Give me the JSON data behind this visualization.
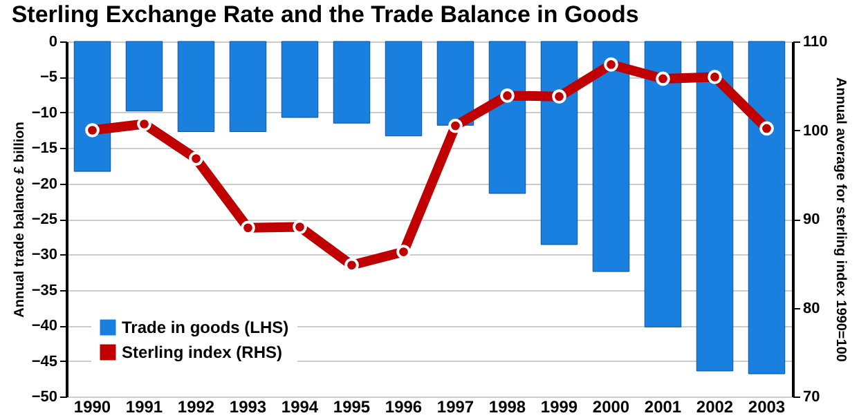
{
  "chart_data": {
    "type": "bar",
    "title": "Sterling Exchange Rate and the Trade Balance in Goods",
    "categories": [
      "1990",
      "1991",
      "1992",
      "1993",
      "1994",
      "1995",
      "1996",
      "1997",
      "1998",
      "1999",
      "2000",
      "2001",
      "2002",
      "2003"
    ],
    "series": [
      {
        "name": "Trade in goods (LHS)",
        "color": "#1a80e0",
        "values": [
          -18.3,
          -9.8,
          -12.7,
          -12.7,
          -10.7,
          -11.5,
          -13.3,
          -11.8,
          -21.4,
          -28.6,
          -32.4,
          -40.2,
          -46.4,
          -46.8
        ]
      },
      {
        "name": "Sterling index (RHS)",
        "type": "line",
        "axis": "y2",
        "color": "#c00000",
        "values": [
          100,
          100.7,
          96.8,
          89.0,
          89.1,
          84.8,
          86.3,
          100.5,
          103.9,
          103.8,
          107.4,
          105.8,
          106,
          100.2
        ]
      }
    ],
    "ylabel": "Annual trade balance £ billion",
    "y2label": "Annual average for sterling index 1990=100",
    "ylim": [
      -50,
      0
    ],
    "yticks": [
      -50,
      -45,
      -40,
      -35,
      -30,
      -25,
      -20,
      -15,
      -10,
      -5,
      0
    ],
    "y2lim": [
      70,
      110
    ],
    "y2ticks": [
      70,
      80,
      90,
      100,
      110
    ],
    "grid": "y",
    "legend": "bottom left",
    "marker": "circle",
    "line_style": "solid"
  }
}
